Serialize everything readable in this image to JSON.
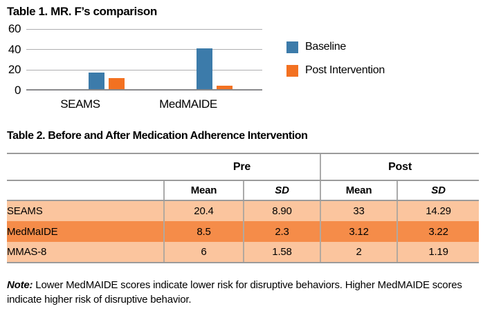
{
  "chart_data": {
    "type": "bar",
    "title": "Table 1. MR. F’s comparison",
    "categories": [
      "SEAMS",
      "MedMAIDE"
    ],
    "series": [
      {
        "name": "Baseline",
        "color": "#3C7BAA",
        "values": [
          16,
          40
        ]
      },
      {
        "name": "Post Intervention",
        "color": "#F37121",
        "values": [
          11,
          3.5
        ]
      }
    ],
    "xlabel": "",
    "ylabel": "",
    "y_ticks": [
      0,
      20,
      40,
      60
    ],
    "ylim": [
      0,
      60
    ],
    "grid": true,
    "legend_position": "right"
  },
  "table2": {
    "title": "Table 2. Before and After Medication Adherence Intervention",
    "col_groups": [
      "Pre",
      "Post"
    ],
    "sub_headers": [
      "Mean",
      "SD",
      "Mean",
      "SD"
    ],
    "rows": [
      {
        "label": "SEAMS",
        "values": [
          "20.4",
          "8.90",
          "33",
          "14.29"
        ],
        "highlight": false
      },
      {
        "label": "MedMaIDE",
        "values": [
          "8.5",
          "2.3",
          "3.12",
          "3.22"
        ],
        "highlight": true
      },
      {
        "label": "MMAS-8",
        "values": [
          "6",
          "1.58",
          "2",
          "1.19"
        ],
        "highlight": false
      }
    ]
  },
  "note": {
    "label": "Note:",
    "text": " Lower MedMAIDE scores indicate lower risk for disruptive behaviors. Higher MedMAIDE scores indicate higher risk of disruptive behavior."
  },
  "colors": {
    "row_normal": "#FBC59E",
    "row_highlight": "#F58C49",
    "grid_line": "#AEAEB0",
    "axis_line": "#8A8A8C",
    "table_border": "#9B9B9B"
  }
}
